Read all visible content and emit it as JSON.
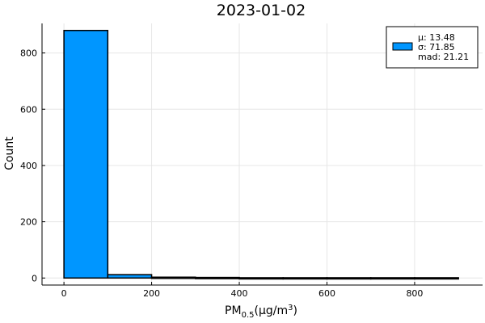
{
  "chart_data": {
    "type": "bar",
    "title": "2023-01-02",
    "ylabel": "Count",
    "xlabel": {
      "main": "PM",
      "subscript": "0.5",
      "unit_prefix": "(μg/m",
      "unit_superscript": "3",
      "unit_suffix": ")"
    },
    "bins": [
      {
        "start": 0,
        "end": 100,
        "count": 880
      },
      {
        "start": 100,
        "end": 200,
        "count": 12
      },
      {
        "start": 200,
        "end": 300,
        "count": 3
      },
      {
        "start": 300,
        "end": 400,
        "count": 2
      },
      {
        "start": 400,
        "end": 500,
        "count": 1
      },
      {
        "start": 500,
        "end": 600,
        "count": 1
      },
      {
        "start": 600,
        "end": 700,
        "count": 1
      },
      {
        "start": 700,
        "end": 800,
        "count": 1
      },
      {
        "start": 800,
        "end": 900,
        "count": 1
      }
    ],
    "xlim": [
      -50,
      955
    ],
    "ylim": [
      -25,
      905
    ],
    "xticks": [
      0,
      200,
      400,
      600,
      800
    ],
    "yticks": [
      0,
      200,
      400,
      600,
      800
    ],
    "grid": true,
    "bar_color": "#0096ff",
    "legend": {
      "position": "top-right",
      "lines": [
        "μ: 13.48",
        "σ: 71.85",
        "mad: 21.21"
      ]
    }
  }
}
